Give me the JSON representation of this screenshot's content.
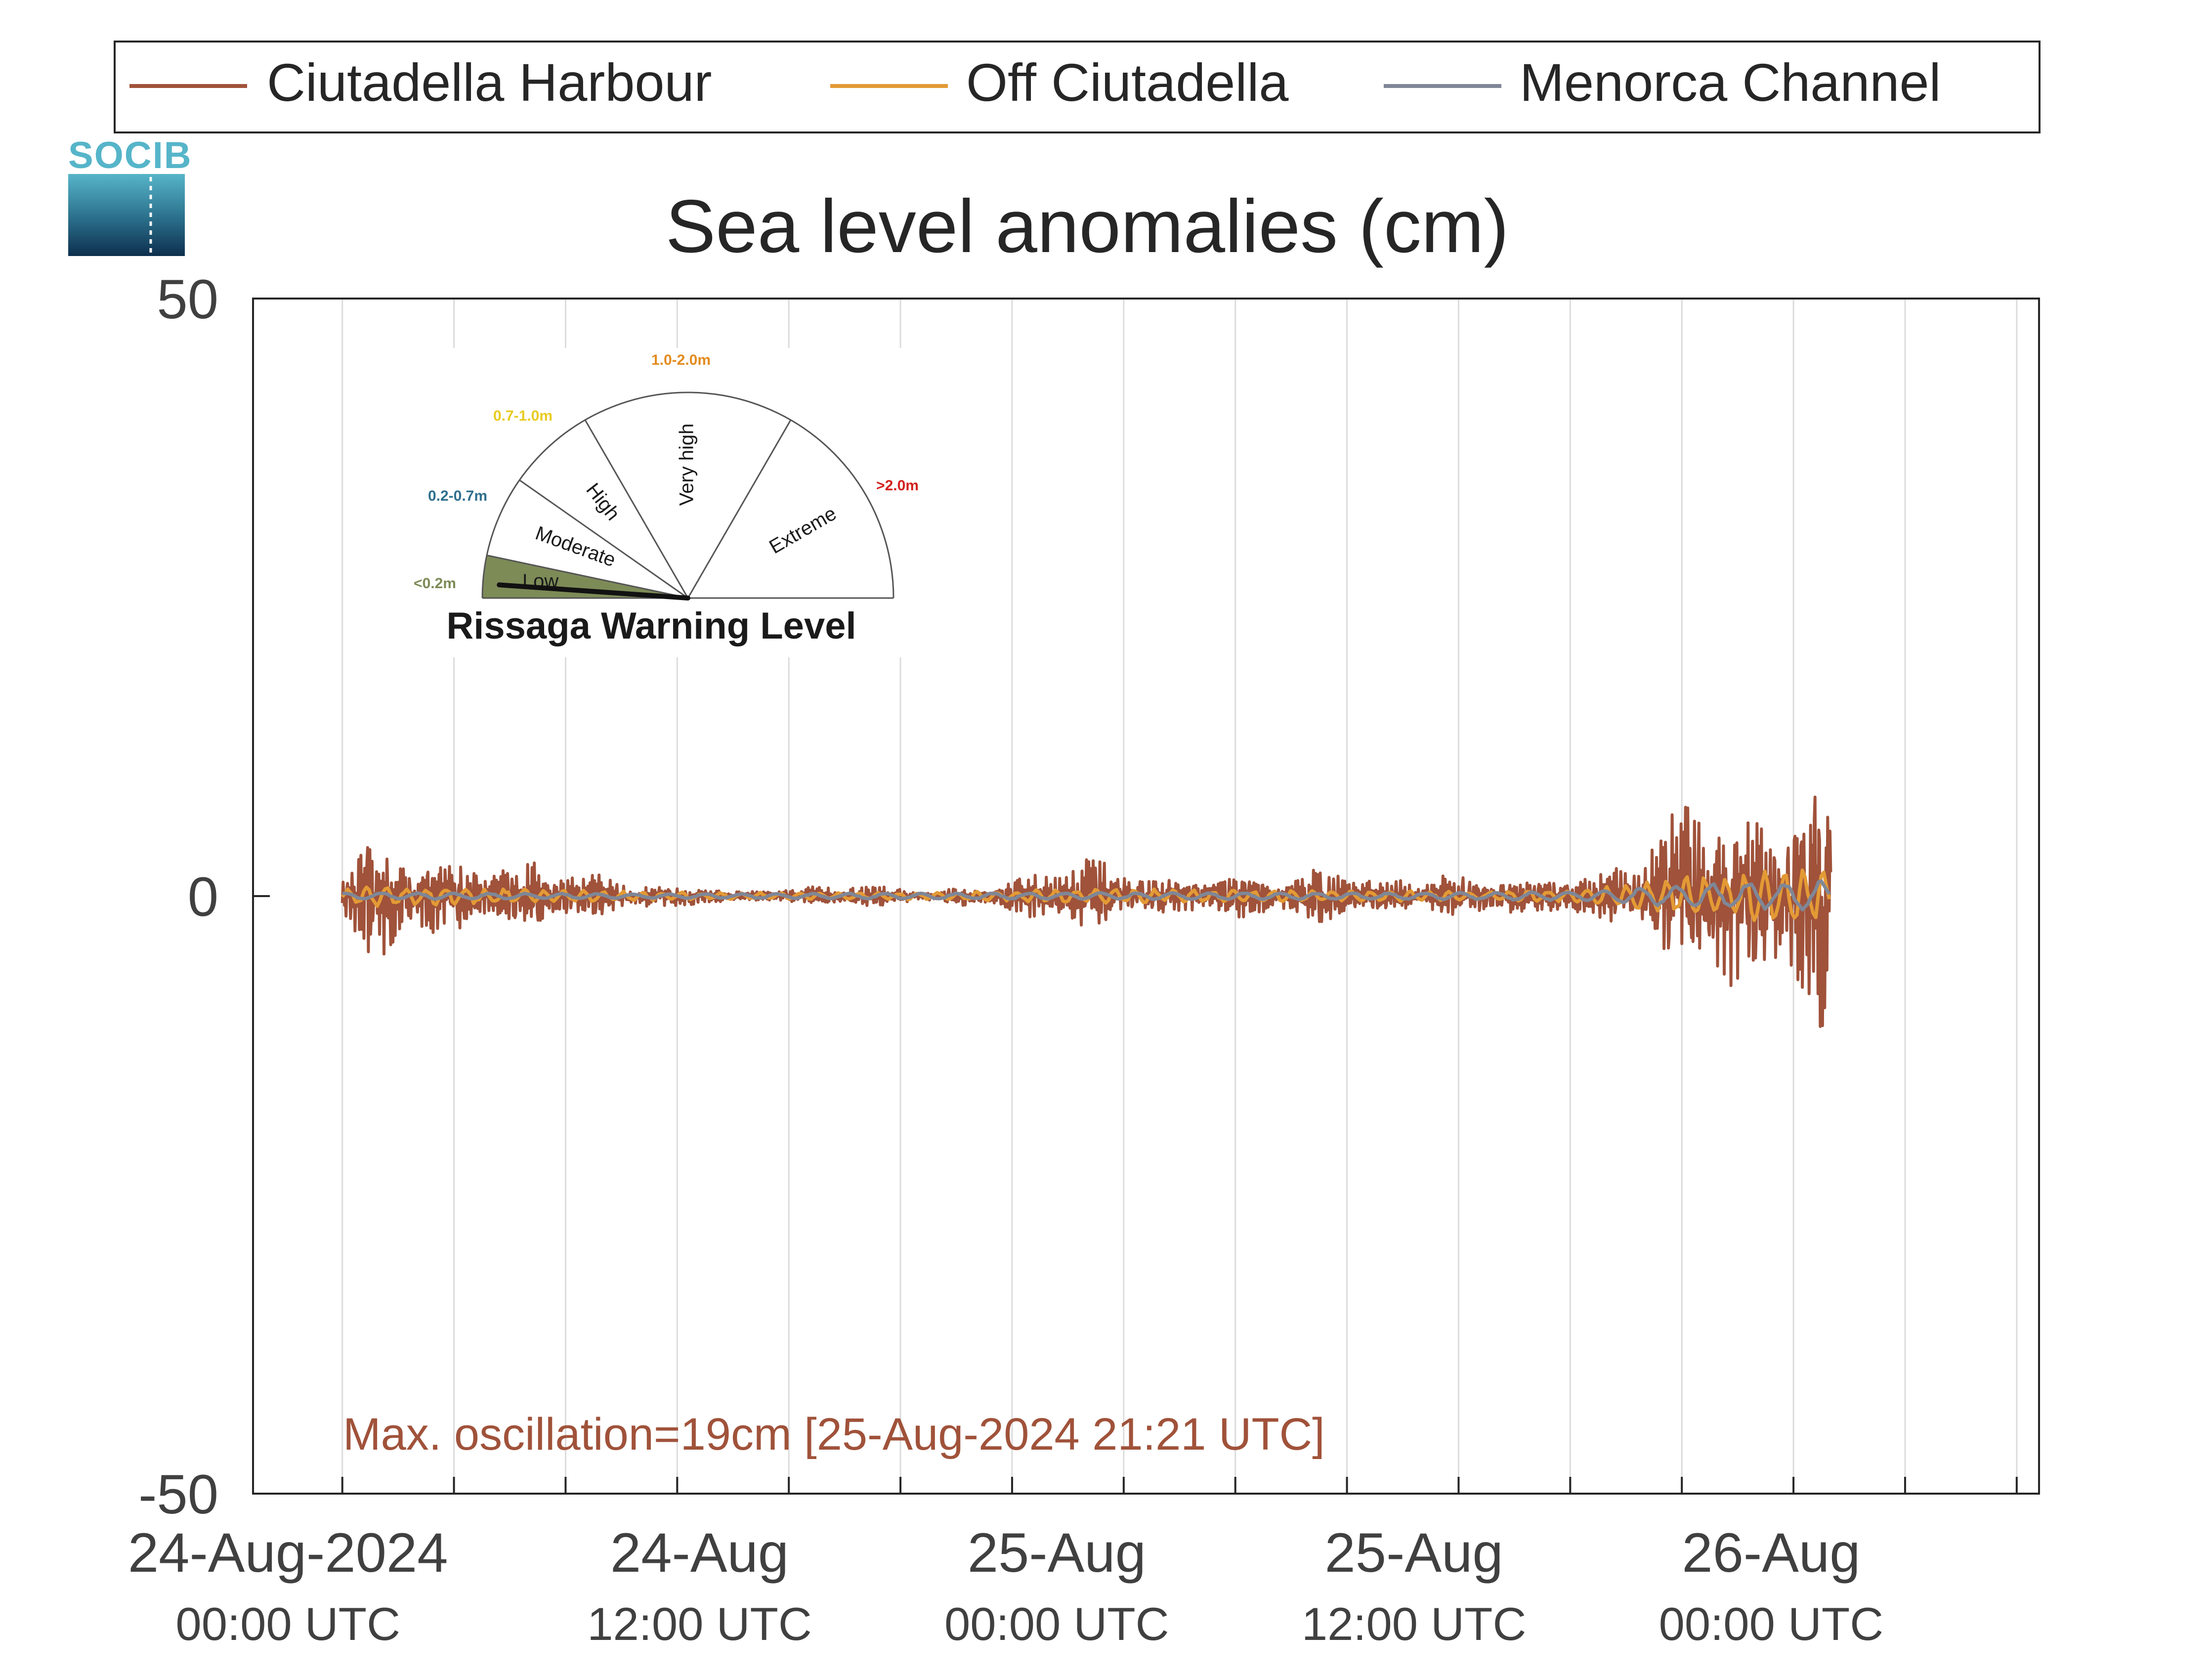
{
  "chart_data": {
    "type": "line",
    "title": "Sea level anomalies (cm)",
    "ylim": [
      -50,
      50
    ],
    "yticks": [
      -50,
      0,
      50
    ],
    "x_unit": "hours since 24-Aug-2024 00:00 UTC",
    "xlim": [
      -3,
      57
    ],
    "x_gridlines_every_hours": 3.75,
    "grid": "vertical",
    "legend_position": "top",
    "x_ticks": [
      {
        "x": 0,
        "line1": "24-Aug-2024",
        "line2": "00:00 UTC"
      },
      {
        "x": 12,
        "line1": "24-Aug",
        "line2": "12:00 UTC"
      },
      {
        "x": 24,
        "line1": "25-Aug",
        "line2": "00:00 UTC"
      },
      {
        "x": 36,
        "line1": "25-Aug",
        "line2": "12:00 UTC"
      },
      {
        "x": 48,
        "line1": "26-Aug",
        "line2": "00:00 UTC"
      }
    ],
    "annotation": "Max. oscillation=19cm [25-Aug-2024 21:21 UTC]",
    "series": [
      {
        "name": "Ciutadella Harbour",
        "color": "#a0523a",
        "amplitude_envelope_cm": [
          [
            0,
            2
          ],
          [
            0.8,
            4
          ],
          [
            1.5,
            4
          ],
          [
            2.5,
            3
          ],
          [
            3.5,
            2.5
          ],
          [
            5,
            2
          ],
          [
            6,
            2.5
          ],
          [
            7.5,
            2
          ],
          [
            9.5,
            1
          ],
          [
            11,
            0.6
          ],
          [
            12,
            0.8
          ],
          [
            13,
            0.3
          ],
          [
            15,
            0.5
          ],
          [
            17.5,
            0.8
          ],
          [
            19.5,
            0.4
          ],
          [
            22,
            0.8
          ],
          [
            24,
            2
          ],
          [
            25,
            2.6
          ],
          [
            26.5,
            1.5
          ],
          [
            28,
            1
          ],
          [
            29.5,
            1.5
          ],
          [
            31.5,
            1.2
          ],
          [
            33,
            2
          ],
          [
            35,
            1
          ],
          [
            37,
            1.5
          ],
          [
            38.5,
            1.2
          ],
          [
            40,
            1.2
          ],
          [
            42,
            1.5
          ],
          [
            43.5,
            2.5
          ],
          [
            45,
            6
          ],
          [
            46,
            8
          ],
          [
            47,
            6
          ],
          [
            48,
            6
          ],
          [
            49.5,
            9
          ],
          [
            50,
            8
          ]
        ]
      },
      {
        "name": "Off Ciutadella",
        "color": "#e39a35",
        "amplitude_envelope_cm": [
          [
            0,
            0.5
          ],
          [
            1,
            1
          ],
          [
            3,
            0.8
          ],
          [
            8,
            0.5
          ],
          [
            12,
            0.3
          ],
          [
            20,
            0.3
          ],
          [
            24,
            0.6
          ],
          [
            26,
            0.6
          ],
          [
            32,
            0.5
          ],
          [
            38,
            0.4
          ],
          [
            42,
            0.6
          ],
          [
            45,
            1.8
          ],
          [
            47,
            2.2
          ],
          [
            49,
            2.5
          ],
          [
            50,
            2.8
          ]
        ]
      },
      {
        "name": "Menorca Channel",
        "color": "#7f8797",
        "amplitude_envelope_cm": [
          [
            0,
            0.3
          ],
          [
            12,
            0.2
          ],
          [
            24,
            0.3
          ],
          [
            36,
            0.3
          ],
          [
            42,
            0.4
          ],
          [
            45,
            1
          ],
          [
            47,
            1.2
          ],
          [
            50,
            1.4
          ]
        ]
      }
    ]
  },
  "logo": {
    "text": "SOCIB"
  },
  "inset": {
    "title": "Rissaga Warning Level",
    "needle_level": "Low",
    "levels": [
      {
        "name": "Low",
        "range": "<0.2m",
        "color": "#7d8b57"
      },
      {
        "name": "Moderate",
        "range": "0.2-0.7m",
        "color": "#2f6f8e"
      },
      {
        "name": "High",
        "range": "0.7-1.0m",
        "color": "#e8cb21"
      },
      {
        "name": "Very high",
        "range": "1.0-2.0m",
        "color": "#e38b1e"
      },
      {
        "name": "Extreme",
        "range": ">2.0m",
        "color": "#d3211f"
      }
    ]
  }
}
